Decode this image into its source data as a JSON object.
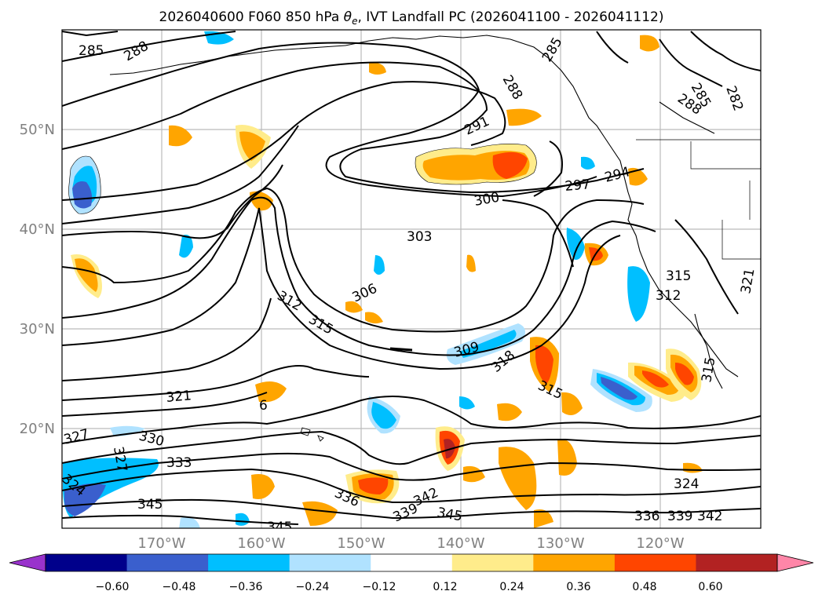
{
  "title": "2026040600 F060 850 hPa θe, IVT Landfall PC (2026041100 - 2026041112)",
  "title_parts": {
    "prefix": "2026040600 F060 850 hPa ",
    "theta": "θ",
    "sub": "e",
    "suffix": ", IVT Landfall PC (2026041100 - 2026041112)"
  },
  "axes": {
    "lat_labels": [
      "50°N",
      "40°N",
      "30°N",
      "20°N"
    ],
    "lon_labels": [
      "170°W",
      "160°W",
      "150°W",
      "140°W",
      "130°W",
      "120°W"
    ],
    "label_color": "#808080"
  },
  "colorbar": {
    "ticks": [
      "−0.60",
      "−0.48",
      "−0.36",
      "−0.24",
      "−0.12",
      "0.12",
      "0.24",
      "0.36",
      "0.48",
      "0.60"
    ],
    "colors": [
      "#9932cc",
      "#00008b",
      "#3a5fcd",
      "#00bfff",
      "#b0e2ff",
      "#ffffff",
      "#ffec8b",
      "#ffa500",
      "#ff4500",
      "#b22222",
      "#ff86a8"
    ]
  },
  "contour_labels": [
    "285",
    "288",
    "288",
    "285",
    "288",
    "285",
    "282",
    "291",
    "294",
    "297",
    "300",
    "303",
    "306",
    "309",
    "312",
    "315",
    "315",
    "318",
    "315",
    "315",
    "312",
    "321",
    "321",
    "324",
    "327",
    "330",
    "333",
    "336",
    "336",
    "339",
    "339",
    "342",
    "342",
    "345",
    "345",
    "345",
    "324",
    "327",
    "6"
  ]
}
